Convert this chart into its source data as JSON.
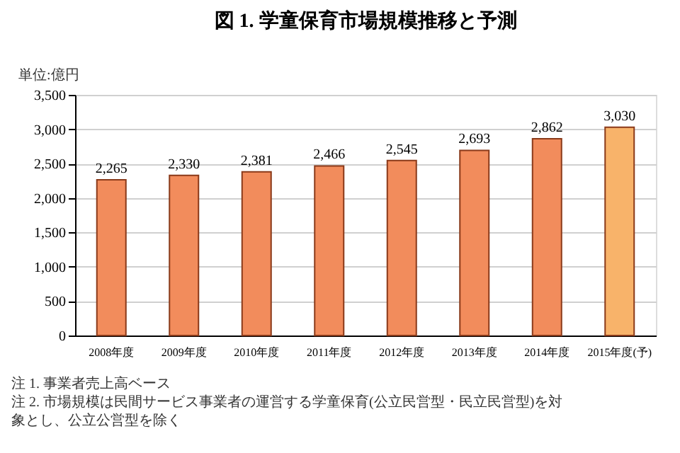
{
  "chart_data": {
    "type": "bar",
    "title": "図 1.  学童保育市場規模推移と予測",
    "categories": [
      "2008年度",
      "2009年度",
      "2010年度",
      "2011年度",
      "2012年度",
      "2013年度",
      "2014年度",
      "2015年度(予)"
    ],
    "values": [
      2265,
      2330,
      2381,
      2466,
      2545,
      2693,
      2862,
      3030
    ],
    "colors": [
      "#f28c5c",
      "#f28c5c",
      "#f28c5c",
      "#f28c5c",
      "#f28c5c",
      "#f28c5c",
      "#f28c5c",
      "#f8b36a"
    ],
    "ylim": [
      0,
      3500
    ],
    "yticks": [
      {
        "value": 0,
        "label": "0"
      },
      {
        "value": 500,
        "label": "500"
      },
      {
        "value": 1000,
        "label": "1,000"
      },
      {
        "value": 1500,
        "label": "1,500"
      },
      {
        "value": 2000,
        "label": "2,000"
      },
      {
        "value": 2500,
        "label": "2,500"
      },
      {
        "value": 3000,
        "label": "3,000"
      },
      {
        "value": 3500,
        "label": "3,500"
      }
    ],
    "grid": "y",
    "value_labels": [
      "2,265",
      "2,330",
      "2,381",
      "2,466",
      "2,545",
      "2,693",
      "2,862",
      "3,030"
    ],
    "annotations": [
      "単位:億円",
      "注 1.  事業者売上高ベース",
      "注 2.  市場規模は民間サービス事業者の運営する学童保育(公立民営型・民立民営型)を対象とし、公立公営型を除く"
    ]
  }
}
